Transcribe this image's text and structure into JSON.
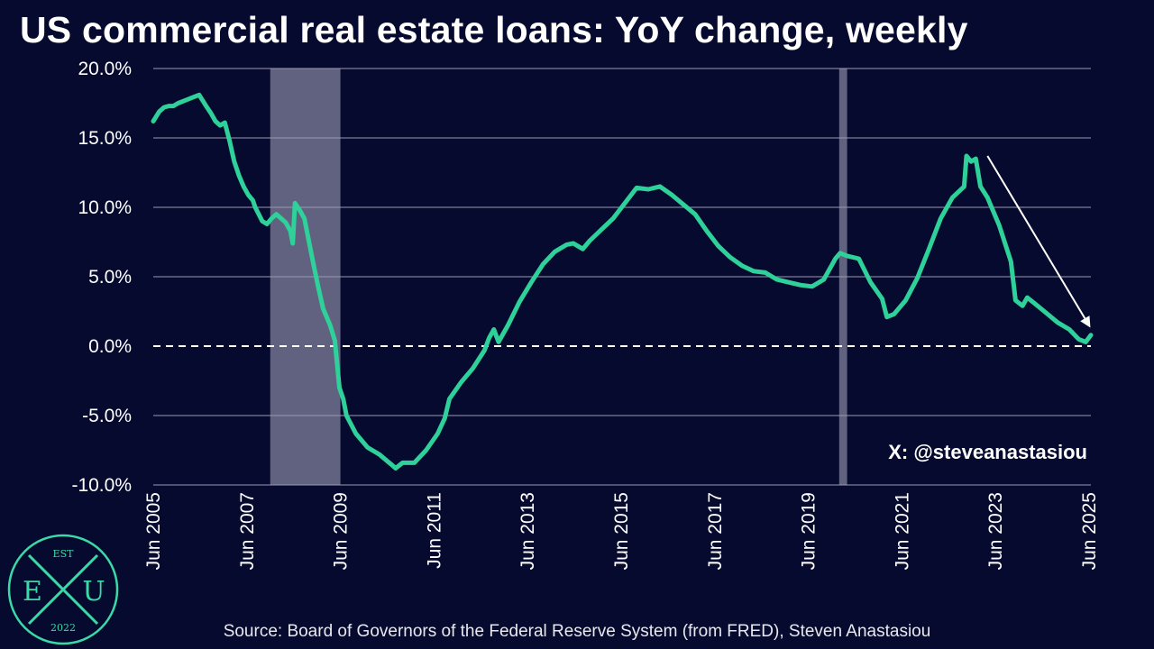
{
  "title": "US commercial real estate loans: YoY change, weekly",
  "source": "Source: Board of Governors of the Federal Reserve System (from FRED), Steven Anastasiou",
  "watermark": "X: @steveanastasiou",
  "logo": {
    "top": "EST",
    "left": "E",
    "middle": "X",
    "right": "U",
    "bottom": "2022"
  },
  "colors": {
    "background": "#060a2e",
    "line": "#2fd19b",
    "recession": "#6b6c8a",
    "gridline": "#9a9bb0",
    "logo": "#3ad9a7"
  },
  "chart_data": {
    "type": "line",
    "title": "US commercial real estate loans: YoY change, weekly",
    "xlabel": "",
    "ylabel": "",
    "ylim": [
      -10,
      20
    ],
    "xlim": [
      2005.42,
      2025.46
    ],
    "y_ticks": [
      "20.0%",
      "15.0%",
      "10.0%",
      "5.0%",
      "0.0%",
      "-5.0%",
      "-10.0%"
    ],
    "y_tick_values": [
      20,
      15,
      10,
      5,
      0,
      -5,
      -10
    ],
    "x_ticks": [
      "Jun 2005",
      "Jun 2007",
      "Jun 2009",
      "Jun 2011",
      "Jun 2013",
      "Jun 2015",
      "Jun 2017",
      "Jun 2019",
      "Jun 2021",
      "Jun 2023",
      "Jun 2025"
    ],
    "x_tick_values": [
      2005.42,
      2007.42,
      2009.42,
      2011.42,
      2013.42,
      2015.42,
      2017.42,
      2019.42,
      2021.42,
      2023.42,
      2025.42
    ],
    "grid": true,
    "zero_line": "dashed",
    "shaded_regions": [
      {
        "label": "recession",
        "x_start": 2007.92,
        "x_end": 2009.42
      },
      {
        "label": "recession",
        "x_start": 2020.08,
        "x_end": 2020.25
      }
    ],
    "arrow": {
      "from": [
        2023.25,
        13.7
      ],
      "to": [
        2025.42,
        1.5
      ]
    },
    "series": [
      {
        "x": [
          2005.42,
          2005.55,
          2005.65,
          2005.75,
          2005.85,
          2005.95,
          2006.1,
          2006.25,
          2006.4,
          2006.55,
          2006.65,
          2006.75,
          2006.85,
          2006.95,
          2007.05,
          2007.15,
          2007.25,
          2007.35,
          2007.45,
          2007.55,
          2007.6,
          2007.75,
          2007.85,
          2007.95,
          2008.05,
          2008.15,
          2008.25,
          2008.35,
          2008.4,
          2008.45,
          2008.55,
          2008.65,
          2008.75,
          2008.85,
          2008.95,
          2009.05,
          2009.2,
          2009.3,
          2009.4,
          2009.48,
          2009.55,
          2009.75,
          2010.0,
          2010.25,
          2010.5,
          2010.6,
          2010.75,
          2011.0,
          2011.25,
          2011.5,
          2011.65,
          2011.75,
          2012.0,
          2012.25,
          2012.5,
          2012.6,
          2012.7,
          2012.8,
          2013.0,
          2013.25,
          2013.5,
          2013.75,
          2014.0,
          2014.25,
          2014.4,
          2014.6,
          2014.75,
          2015.0,
          2015.25,
          2015.5,
          2015.75,
          2016.0,
          2016.25,
          2016.5,
          2016.75,
          2017.0,
          2017.25,
          2017.5,
          2017.75,
          2018.0,
          2018.25,
          2018.5,
          2018.75,
          2019.0,
          2019.25,
          2019.5,
          2019.75,
          2020.0,
          2020.1,
          2020.25,
          2020.5,
          2020.75,
          2021.0,
          2021.1,
          2021.25,
          2021.5,
          2021.75,
          2022.0,
          2022.25,
          2022.5,
          2022.75,
          2022.8,
          2022.9,
          2023.0,
          2023.1,
          2023.25,
          2023.5,
          2023.75,
          2023.85,
          2024.0,
          2024.1,
          2024.25,
          2024.5,
          2024.75,
          2025.0,
          2025.2,
          2025.35,
          2025.46
        ],
        "y": [
          16.2,
          16.9,
          17.2,
          17.3,
          17.3,
          17.5,
          17.7,
          17.9,
          18.1,
          17.3,
          16.8,
          16.2,
          15.9,
          16.1,
          14.8,
          13.3,
          12.3,
          11.5,
          10.9,
          10.5,
          10.0,
          9.0,
          8.8,
          9.2,
          9.5,
          9.2,
          8.9,
          8.3,
          7.4,
          10.3,
          9.8,
          9.2,
          7.5,
          5.8,
          4.2,
          2.7,
          1.5,
          0.4,
          -3.0,
          -3.8,
          -5.0,
          -6.3,
          -7.3,
          -7.8,
          -8.5,
          -8.8,
          -8.4,
          -8.4,
          -7.5,
          -6.3,
          -5.2,
          -3.8,
          -2.6,
          -1.6,
          -0.3,
          0.6,
          1.2,
          0.3,
          1.5,
          3.2,
          4.6,
          5.9,
          6.8,
          7.3,
          7.4,
          7.0,
          7.6,
          8.4,
          9.2,
          10.3,
          11.4,
          11.3,
          11.5,
          10.9,
          10.2,
          9.5,
          8.3,
          7.2,
          6.4,
          5.8,
          5.4,
          5.3,
          4.8,
          4.6,
          4.4,
          4.3,
          4.8,
          6.3,
          6.7,
          6.5,
          6.3,
          4.6,
          3.4,
          2.1,
          2.3,
          3.3,
          4.9,
          7.0,
          9.2,
          10.7,
          11.5,
          13.7,
          13.3,
          13.5,
          11.5,
          10.7,
          8.7,
          6.1,
          3.3,
          2.9,
          3.5,
          3.1,
          2.4,
          1.7,
          1.2,
          0.5,
          0.3,
          0.8
        ]
      }
    ]
  }
}
